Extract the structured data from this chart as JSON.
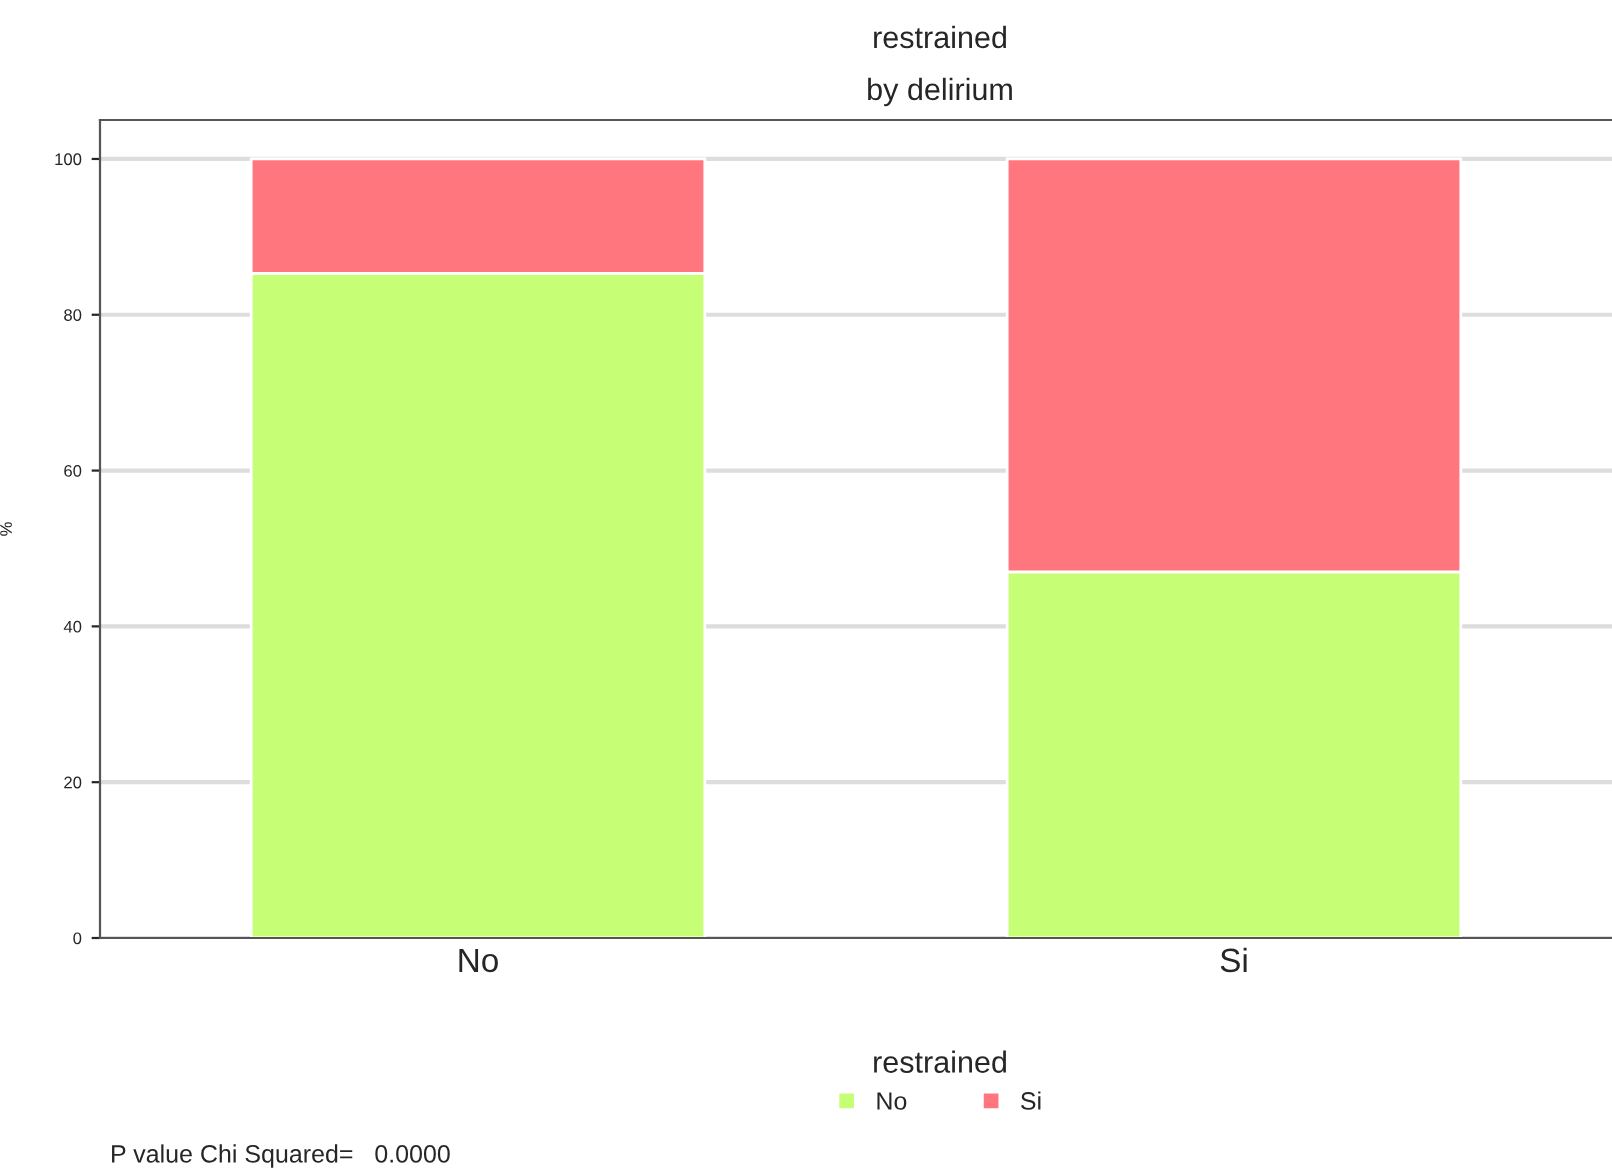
{
  "chart_data": {
    "type": "bar",
    "title": "restrained",
    "subtitle": "by delirium",
    "ylabel": "%",
    "legend_title": "restrained",
    "categories": [
      "No",
      "Si"
    ],
    "stacked": true,
    "series": [
      {
        "name": "No",
        "color": "#c6ff75",
        "values": [
          85.3,
          47.0
        ]
      },
      {
        "name": "Si",
        "color": "#ff767f",
        "values": [
          14.7,
          53.0
        ]
      }
    ],
    "ylim": [
      0,
      105
    ],
    "yticks": [
      0,
      20,
      40,
      60,
      80,
      100
    ],
    "grid": "y",
    "legend": "bottom",
    "annotations": [
      "P value Chi Squared=   0.0000"
    ]
  }
}
